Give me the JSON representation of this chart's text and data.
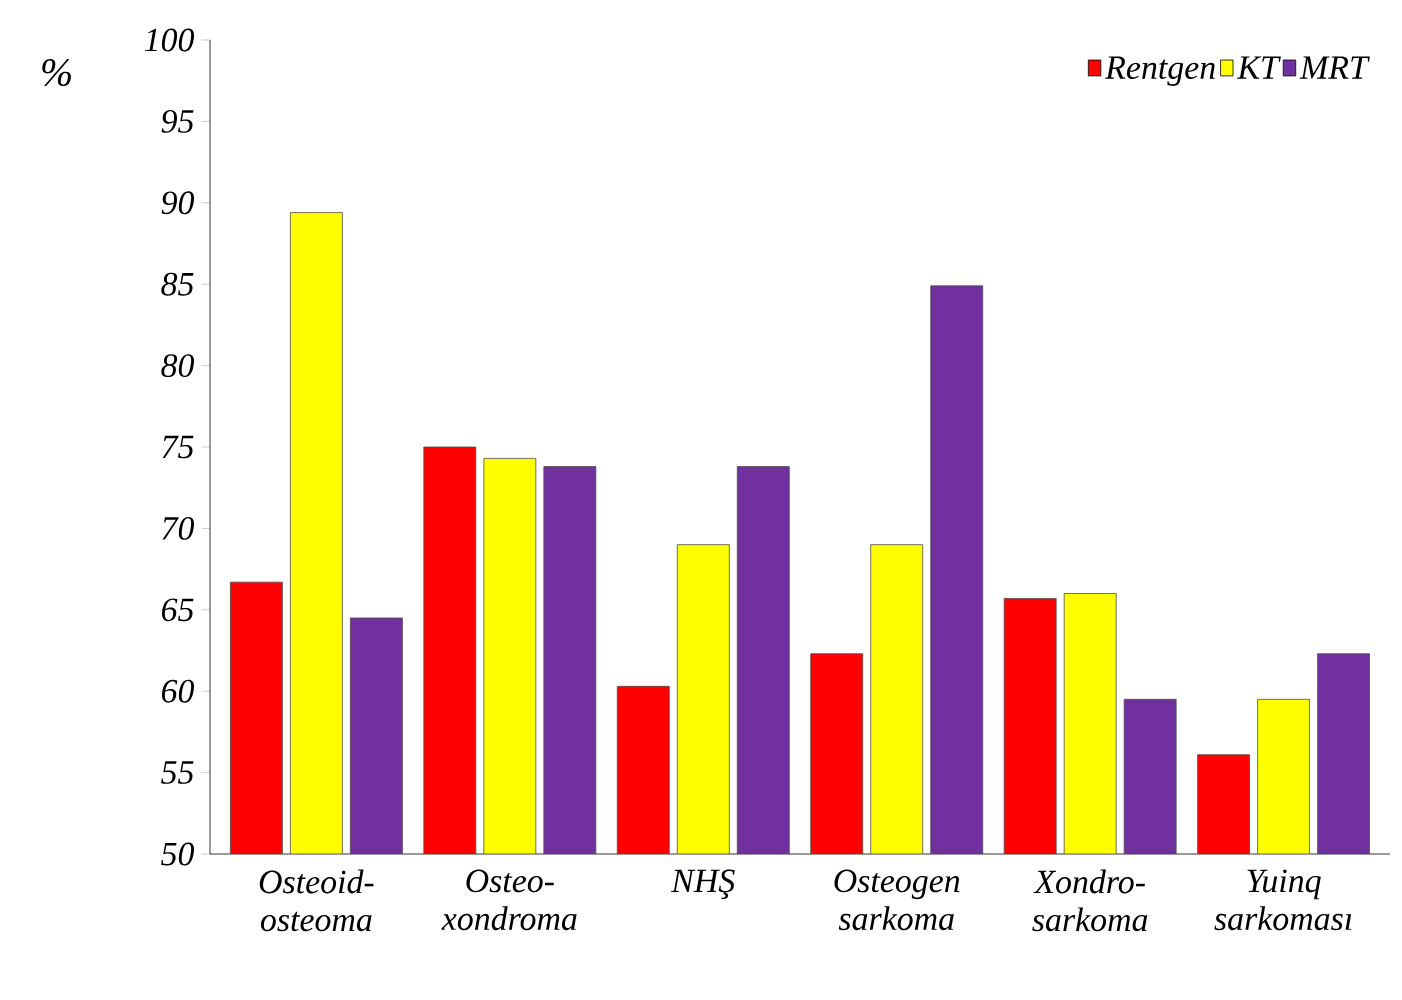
{
  "chart_data": {
    "type": "bar",
    "ylabel": "%",
    "categories": [
      "Osteoid- osteoma",
      "Osteo- xondroma",
      "NHŞ",
      "Osteogen sarkoma",
      "Xondro- sarkoma",
      "Yuinq sarkoması"
    ],
    "series": [
      {
        "name": "Rentgen",
        "color": "#ff0000",
        "values": [
          66.7,
          75,
          60.3,
          62.3,
          65.7,
          56.1
        ]
      },
      {
        "name": "KT",
        "color": "#ffff00",
        "values": [
          89.4,
          74.3,
          69,
          69,
          66,
          59.5
        ]
      },
      {
        "name": "MRT",
        "color": "#7030a0",
        "values": [
          64.5,
          73.8,
          73.8,
          84.9,
          59.5,
          62.3
        ]
      }
    ],
    "ylim": [
      50,
      100
    ],
    "yticks": [
      50,
      55,
      60,
      65,
      70,
      75,
      80,
      85,
      90,
      95,
      100
    ],
    "grid": false,
    "legend": "top right"
  }
}
